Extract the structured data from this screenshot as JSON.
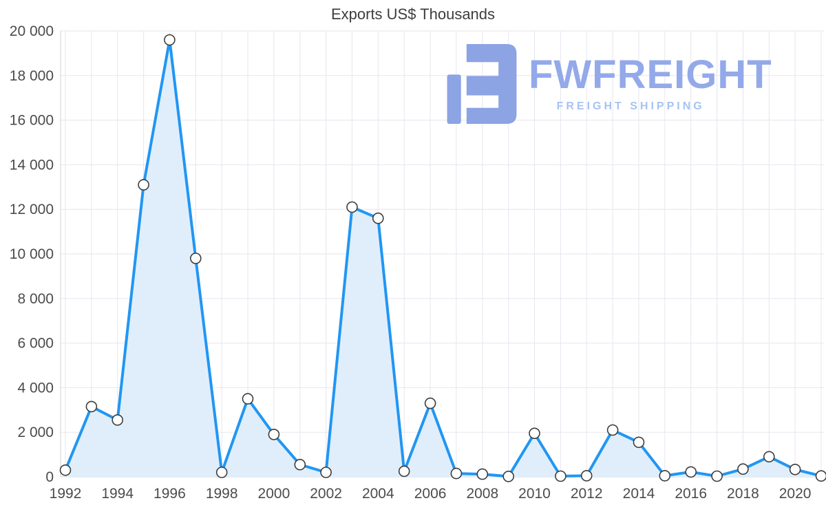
{
  "title": "Exports US$ Thousands",
  "watermark": {
    "brand": "FWFREIGHT",
    "tagline": "FREIGHT SHIPPING",
    "logo_color": "#8ca3e4",
    "brand_color": "#93a9e9",
    "tagline_color": "#a6c3f3"
  },
  "chart_data": {
    "type": "area",
    "title": "Exports US$ Thousands",
    "x": [
      1992,
      1993,
      1994,
      1995,
      1996,
      1997,
      1998,
      1999,
      2000,
      2001,
      2002,
      2003,
      2004,
      2005,
      2006,
      2007,
      2008,
      2009,
      2010,
      2011,
      2012,
      2013,
      2014,
      2015,
      2016,
      2017,
      2018,
      2019,
      2020,
      2021
    ],
    "values": [
      300,
      3150,
      2550,
      13100,
      19600,
      9800,
      200,
      3500,
      1900,
      550,
      200,
      12100,
      11600,
      250,
      3300,
      150,
      120,
      20,
      1950,
      30,
      50,
      2100,
      1550,
      50,
      220,
      30,
      350,
      900,
      330,
      40
    ],
    "ylim": [
      0,
      20000
    ],
    "y_ticks": [
      0,
      2000,
      4000,
      6000,
      8000,
      10000,
      12000,
      14000,
      16000,
      18000,
      20000
    ],
    "y_tick_labels": [
      "0",
      "2 000",
      "4 000",
      "6 000",
      "8 000",
      "10 000",
      "12 000",
      "14 000",
      "16 000",
      "18 000",
      "20 000"
    ],
    "x_tick_labels": [
      "1992",
      "1994",
      "1996",
      "1998",
      "2000",
      "2002",
      "2004",
      "2006",
      "2008",
      "2010",
      "2012",
      "2014",
      "2016",
      "2018",
      "2020"
    ],
    "grid": true,
    "legend": "none",
    "line_color": "#2196f3",
    "fill_color": "#e0eefb",
    "marker_fill": "#ffffff",
    "marker_stroke": "#3c3c3c",
    "grid_color": "#e6e6ef",
    "axis_color": "#cfcfd8"
  }
}
